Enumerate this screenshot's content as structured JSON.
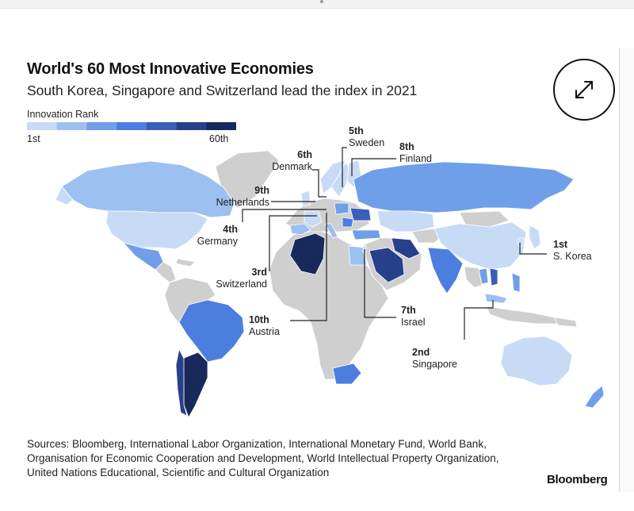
{
  "header": {
    "title": "World's 60 Most Innovative Economies",
    "subtitle": "South Korea, Singapore and Switzerland lead the index in 2021"
  },
  "legend": {
    "title": "Innovation Rank",
    "low_label": "1st",
    "high_label": "60th",
    "colors": [
      "#c7dbf7",
      "#9cc0f0",
      "#6f9fe8",
      "#4c7ee0",
      "#3a5fb8",
      "#27408a",
      "#182a5c"
    ]
  },
  "colors": {
    "no_data": "#cfcfcf",
    "text": "#222222",
    "leader_line": "#222222",
    "background": "#ffffff"
  },
  "callouts": [
    {
      "rank": "1st",
      "country": "S. Korea"
    },
    {
      "rank": "2nd",
      "country": "Singapore"
    },
    {
      "rank": "3rd",
      "country": "Switzerland"
    },
    {
      "rank": "4th",
      "country": "Germany"
    },
    {
      "rank": "5th",
      "country": "Sweden"
    },
    {
      "rank": "6th",
      "country": "Denmark"
    },
    {
      "rank": "7th",
      "country": "Israel"
    },
    {
      "rank": "8th",
      "country": "Finland"
    },
    {
      "rank": "9th",
      "country": "Netherlands"
    },
    {
      "rank": "10th",
      "country": "Austria"
    }
  ],
  "sources": {
    "line1": "Sources: Bloomberg, International Labor Organization, International Monetary Fund, World Bank,",
    "line2": "Organisation for Economic Cooperation and Development, World Intellectual Property Organization,",
    "line3": "United Nations Educational, Scientific and Cultural Organization"
  },
  "brand": "Bloomberg",
  "icons": {
    "expand": "expand-diagonal-arrows-icon"
  }
}
